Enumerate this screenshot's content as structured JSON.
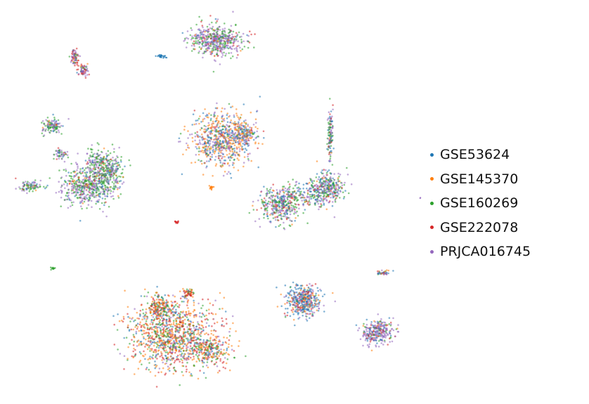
{
  "chart_data": {
    "type": "scatter",
    "title": "",
    "xlabel": "",
    "ylabel": "",
    "axes_visible": false,
    "grid": false,
    "legend_placement": "right",
    "series": [
      {
        "name": "GSE53624",
        "color": "#1f77b4"
      },
      {
        "name": "GSE145370",
        "color": "#ff7f0e"
      },
      {
        "name": "GSE160269",
        "color": "#2ca02c"
      },
      {
        "name": "GSE222078",
        "color": "#d62728"
      },
      {
        "name": "PRJCA016745",
        "color": "#9467bd"
      }
    ],
    "clusters": [
      {
        "id": "top-center",
        "x": 306,
        "y": 57,
        "weights": [
          0.05,
          0.03,
          0.3,
          0.1,
          0.52
        ]
      },
      {
        "id": "top-left-small",
        "x": 112,
        "y": 90,
        "weights": [
          0.05,
          0.05,
          0.1,
          0.3,
          0.5
        ]
      },
      {
        "id": "left-large",
        "x": 115,
        "y": 250,
        "weights": [
          0.1,
          0.05,
          0.4,
          0.05,
          0.4
        ]
      },
      {
        "id": "center",
        "x": 316,
        "y": 198,
        "weights": [
          0.2,
          0.35,
          0.1,
          0.05,
          0.3
        ]
      },
      {
        "id": "right-middle",
        "x": 430,
        "y": 287,
        "weights": [
          0.2,
          0.05,
          0.3,
          0.1,
          0.35
        ]
      },
      {
        "id": "bottom-large",
        "x": 257,
        "y": 478,
        "weights": [
          0.15,
          0.3,
          0.2,
          0.25,
          0.1
        ]
      },
      {
        "id": "bottom-mid",
        "x": 432,
        "y": 428,
        "weights": [
          0.45,
          0.15,
          0.05,
          0.15,
          0.2
        ]
      },
      {
        "id": "bottom-right",
        "x": 537,
        "y": 473,
        "weights": [
          0.2,
          0.05,
          0.1,
          0.1,
          0.55
        ]
      },
      {
        "id": "tiny-right",
        "x": 545,
        "y": 388,
        "weights": [
          0.2,
          0.3,
          0.2,
          0.1,
          0.2
        ]
      }
    ]
  }
}
